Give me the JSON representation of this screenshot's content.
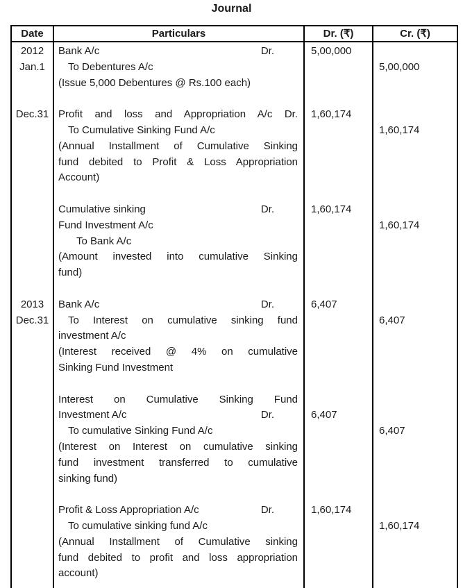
{
  "title": "Journal",
  "columns": {
    "date": "Date",
    "particulars": "Particulars",
    "dr": "Dr. (₹)",
    "cr": "Cr. (₹)"
  },
  "colors": {
    "text": "#1a1a1a",
    "border": "#000000",
    "background": "#ffffff"
  },
  "entries": [
    {
      "date_lines": [
        "2012",
        "Jan.1"
      ],
      "lines": [
        {
          "text": "Bank A/c",
          "dr_label": "Dr."
        },
        {
          "text": "To Debentures A/c",
          "indent": 1
        },
        {
          "text": "(Issue 5,000 Debentures @ Rs.100 each)"
        }
      ],
      "dr": {
        "amount": "5,00,000",
        "line": 0
      },
      "cr": {
        "amount": "5,00,000",
        "line": 1
      }
    },
    {
      "date_lines": [
        "Dec.31"
      ],
      "lines": [
        {
          "text": "Profit and loss  and Appropriation A/c Dr.",
          "justify": true
        },
        {
          "text": "To Cumulative Sinking Fund A/c",
          "indent": 1
        },
        {
          "text": "(Annual Installment of Cumulative Sinking",
          "justify": true
        },
        {
          "text": "fund debited to Profit & Loss Appropriation",
          "justify": true
        },
        {
          "text": "Account)"
        }
      ],
      "dr": {
        "amount": "1,60,174",
        "line": 0
      },
      "cr": {
        "amount": "1,60,174",
        "line": 1
      }
    },
    {
      "date_lines": [],
      "lines": [
        {
          "text": "Cumulative sinking",
          "dr_label": "Dr."
        },
        {
          "text": "Fund Investment A/c"
        },
        {
          "text": "To Bank A/c",
          "indent": 2
        },
        {
          "text": "(Amount invested into cumulative Sinking",
          "justify": true
        },
        {
          "text": "fund)"
        }
      ],
      "dr": {
        "amount": "1,60,174",
        "line": 0
      },
      "cr": {
        "amount": "1,60,174",
        "line": 1
      }
    },
    {
      "date_lines": [
        "2013",
        "Dec.31"
      ],
      "lines": [
        {
          "text": "Bank A/c",
          "dr_label": "Dr."
        },
        {
          "text": "To Interest on cumulative sinking fund",
          "indent": 1,
          "justify": true
        },
        {
          "text": "investment A/c"
        },
        {
          "text": "(Interest received @ 4% on cumulative",
          "justify": true
        },
        {
          "text": "Sinking Fund Investment"
        }
      ],
      "dr": {
        "amount": "6,407",
        "line": 0
      },
      "cr": {
        "amount": "6,407",
        "line": 1
      }
    },
    {
      "date_lines": [],
      "lines": [
        {
          "text": "Interest on Cumulative Sinking Fund",
          "justify": true
        },
        {
          "text": "Investment A/c",
          "dr_label": "Dr."
        },
        {
          "text": "To cumulative Sinking Fund A/c",
          "indent": 1
        },
        {
          "text": "(Interest on Interest on cumulative sinking",
          "justify": true
        },
        {
          "text": "fund investment  transferred to cumulative",
          "justify": true
        },
        {
          "text": "sinking fund)"
        }
      ],
      "dr": {
        "amount": "6,407",
        "line": 1
      },
      "cr": {
        "amount": "6,407",
        "line": 2
      }
    },
    {
      "date_lines": [],
      "lines": [
        {
          "text": "Profit & Loss Appropriation A/c",
          "dr_label": "Dr."
        },
        {
          "text": "To cumulative sinking fund A/c",
          "indent": 1
        },
        {
          "text": "(Annual Installment of Cumulative sinking",
          "justify": true
        },
        {
          "text": "fund debited to profit and loss appropriation",
          "justify": true
        },
        {
          "text": "account)"
        }
      ],
      "dr": {
        "amount": "1,60,174",
        "line": 0
      },
      "cr": {
        "amount": "1,60,174",
        "line": 1
      }
    }
  ]
}
